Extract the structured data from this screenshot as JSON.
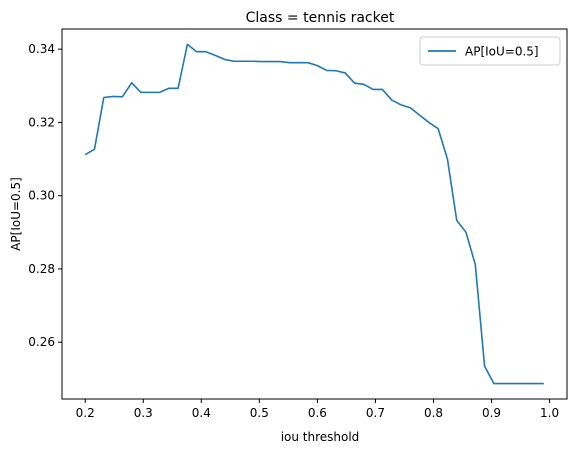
{
  "chart_data": {
    "type": "line",
    "title": "Class = tennis racket",
    "xlabel": "iou threshold",
    "ylabel": "AP[IoU=0.5]",
    "xlim": [
      0.16,
      1.03
    ],
    "ylim": [
      0.2445,
      0.3455
    ],
    "xticks": [
      0.2,
      0.3,
      0.4,
      0.5,
      0.6,
      0.7,
      0.8,
      0.9,
      1.0
    ],
    "xtick_labels": [
      "0.2",
      "0.3",
      "0.4",
      "0.5",
      "0.6",
      "0.7",
      "0.8",
      "0.9",
      "1.0"
    ],
    "yticks": [
      0.26,
      0.28,
      0.3,
      0.32,
      0.34
    ],
    "ytick_labels": [
      "0.26",
      "0.28",
      "0.30",
      "0.32",
      "0.34"
    ],
    "grid": false,
    "legend_position": "top-right",
    "series": [
      {
        "name": "AP[IoU=0.5]",
        "color": "#1f77b4",
        "x": [
          0.2,
          0.216,
          0.232,
          0.248,
          0.264,
          0.28,
          0.296,
          0.312,
          0.328,
          0.344,
          0.36,
          0.376,
          0.392,
          0.408,
          0.424,
          0.44,
          0.456,
          0.472,
          0.488,
          0.504,
          0.52,
          0.536,
          0.552,
          0.568,
          0.584,
          0.6,
          0.616,
          0.632,
          0.648,
          0.664,
          0.68,
          0.696,
          0.712,
          0.728,
          0.744,
          0.76,
          0.776,
          0.792,
          0.808,
          0.824,
          0.84,
          0.856,
          0.872,
          0.888,
          0.904,
          0.92,
          0.936,
          0.952,
          0.968,
          0.99
        ],
        "y": [
          0.3112,
          0.3127,
          0.3268,
          0.3271,
          0.327,
          0.3308,
          0.3282,
          0.3282,
          0.3282,
          0.3293,
          0.3293,
          0.3413,
          0.3393,
          0.3393,
          0.3383,
          0.3372,
          0.3367,
          0.3367,
          0.3367,
          0.3366,
          0.3366,
          0.3366,
          0.3363,
          0.3363,
          0.3363,
          0.3355,
          0.3342,
          0.3341,
          0.3335,
          0.3307,
          0.3304,
          0.329,
          0.329,
          0.3261,
          0.3248,
          0.324,
          0.322,
          0.32,
          0.3183,
          0.31,
          0.2933,
          0.29,
          0.2812,
          0.2535,
          0.2487,
          0.2487,
          0.2487,
          0.2487,
          0.2487,
          0.2487
        ]
      }
    ]
  }
}
